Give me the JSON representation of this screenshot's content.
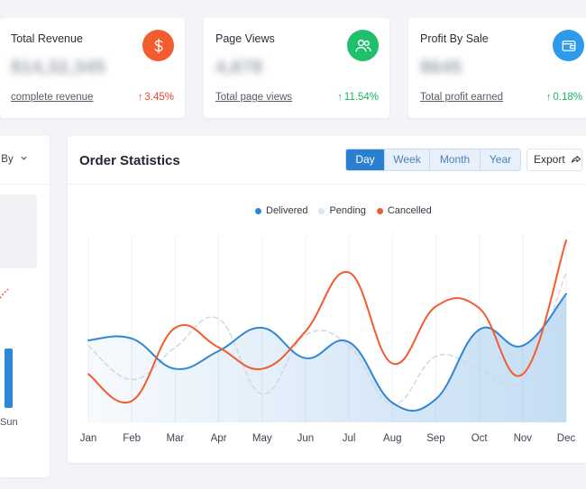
{
  "stats": [
    {
      "title": "Total Revenue",
      "value": "$14,32,345",
      "link": "complete revenue",
      "change": "3.45%",
      "direction": "up",
      "tone": "negative",
      "icon": "dollar-icon",
      "color": "#f25c2e"
    },
    {
      "title": "Page Views",
      "value": "4,678",
      "link": "Total page views",
      "change": "11.54%",
      "direction": "up",
      "tone": "positive",
      "icon": "users-icon",
      "color": "#1fbf6b"
    },
    {
      "title": "Profit By Sale",
      "value": "$645",
      "link": "Total profit earned",
      "change": "0.18%",
      "direction": "up",
      "tone": "positive",
      "icon": "wallet-icon",
      "color": "#2e9bea"
    }
  ],
  "left_panel": {
    "sort_label": "Sort By",
    "day_label": "Sun"
  },
  "order_statistics": {
    "title": "Order Statistics",
    "periods": [
      "Day",
      "Week",
      "Month",
      "Year"
    ],
    "active_period": "Day",
    "export_label": "Export",
    "legend": [
      {
        "name": "Delivered",
        "color": "#2e86d6"
      },
      {
        "name": "Pending",
        "color": "#d6e6f5"
      },
      {
        "name": "Cancelled",
        "color": "#f25c2e"
      }
    ]
  },
  "chart_data": {
    "type": "line",
    "categories": [
      "Jan",
      "Feb",
      "Mar",
      "Apr",
      "May",
      "Jun",
      "Jul",
      "Aug",
      "Sep",
      "Oct",
      "Nov",
      "Dec"
    ],
    "series": [
      {
        "name": "Delivered",
        "color": "#2e86d6",
        "area": true,
        "values": [
          46,
          47,
          30,
          40,
          53,
          36,
          45,
          11,
          13,
          52,
          43,
          72
        ]
      },
      {
        "name": "Pending",
        "color": "#cfd8e2",
        "dashed": true,
        "values": [
          43,
          24,
          42,
          58,
          16,
          49,
          43,
          10,
          37,
          30,
          24,
          84
        ]
      },
      {
        "name": "Cancelled",
        "color": "#f25c2e",
        "values": [
          27,
          12,
          53,
          42,
          30,
          51,
          84,
          33,
          65,
          64,
          27,
          102
        ]
      }
    ],
    "ylim": [
      0,
      105
    ],
    "grid": "vertical",
    "legend_position": "top-center"
  }
}
